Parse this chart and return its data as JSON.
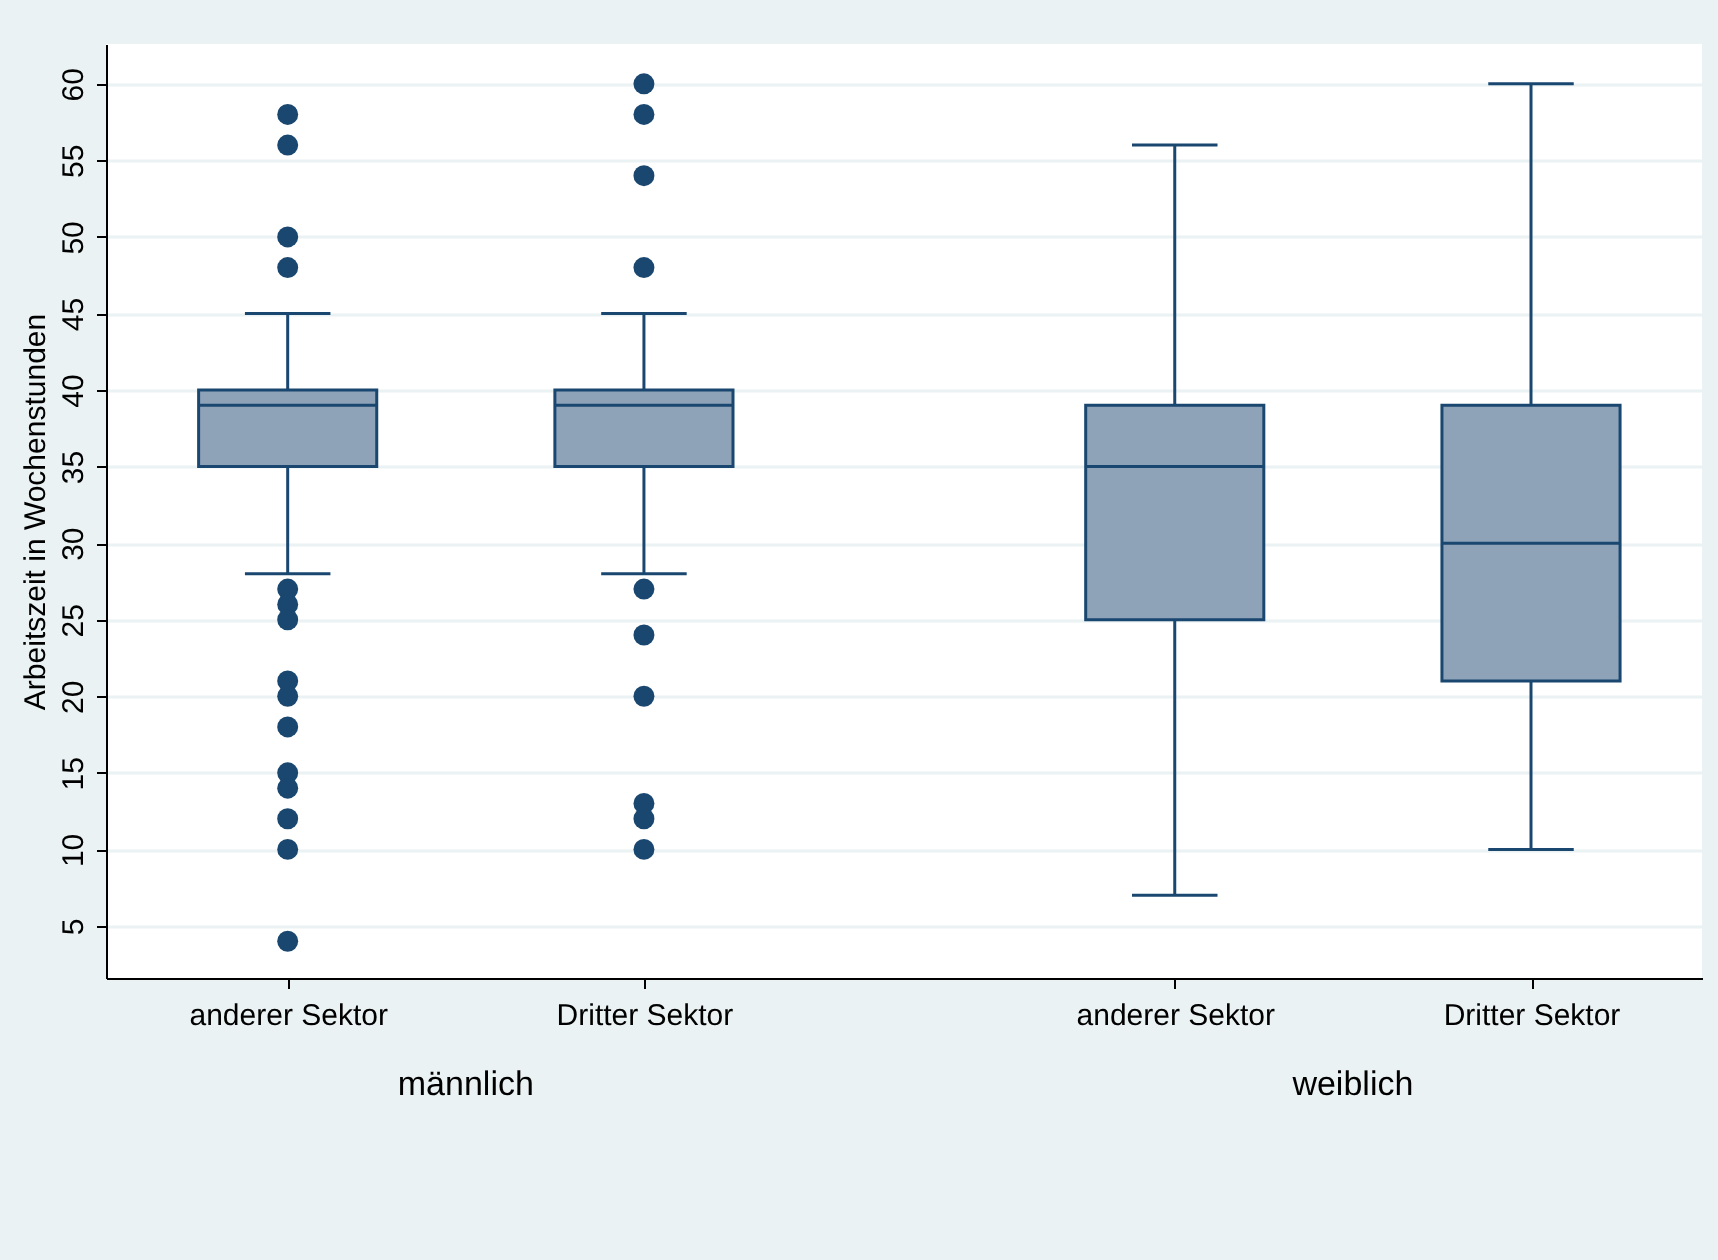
{
  "chart_data": {
    "type": "box",
    "ylabel": "Arbeitszeit in Wochenstunden",
    "categories": [
      "anderer Sektor",
      "Dritter Sektor",
      "anderer Sektor",
      "Dritter Sektor"
    ],
    "boxes": [
      {
        "low": 28,
        "q1": 35,
        "median": 39,
        "q3": 40,
        "high": 45,
        "outliers": [
          58,
          56,
          50,
          48,
          27,
          26,
          25,
          21,
          20,
          18,
          15,
          14,
          12,
          10,
          4
        ]
      },
      {
        "low": 28,
        "q1": 35,
        "median": 39,
        "q3": 40,
        "high": 45,
        "outliers": [
          60,
          58,
          54,
          48,
          27,
          24,
          20,
          13,
          12,
          10
        ]
      },
      {
        "low": 7,
        "q1": 25,
        "median": 35,
        "q3": 39,
        "high": 56
      },
      {
        "low": 10,
        "q1": 21,
        "median": 30,
        "q3": 39,
        "high": 60
      }
    ],
    "color": "#8fa3b8",
    "annotations": [
      "männlich",
      "weiblich"
    ],
    "ylim": [
      1.6,
      62.6
    ],
    "yticks": [
      5,
      10,
      15,
      20,
      25,
      30,
      35,
      40,
      45,
      50,
      55,
      60
    ],
    "grid": "y"
  }
}
